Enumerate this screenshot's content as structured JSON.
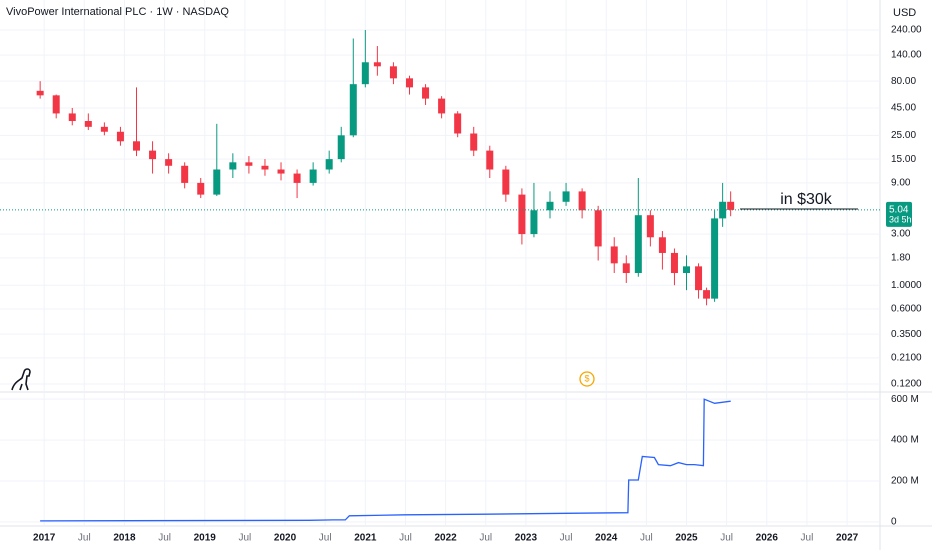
{
  "chart_data": [
    {
      "type": "candlestick",
      "title": "VivoPower International PLC · 1W · NASDAQ",
      "currency": "USD",
      "annotation": "in $30k",
      "last_price": 5.04,
      "countdown": "3d 5h",
      "log_scale": true,
      "grid": true,
      "up_color": "#089981",
      "down_color": "#f23645",
      "xlim": [
        2016.45,
        2027.41
      ],
      "xticks": [
        2017,
        {
          "value": 2017.5,
          "label": "Jul"
        },
        2018,
        {
          "value": 2018.5,
          "label": "Jul"
        },
        2019,
        {
          "value": 2019.5,
          "label": "Jul"
        },
        2020,
        {
          "value": 2020.5,
          "label": "Jul"
        },
        2021,
        {
          "value": 2021.5,
          "label": "Jul"
        },
        2022,
        {
          "value": 2022.5,
          "label": "Jul"
        },
        2023,
        {
          "value": 2023.5,
          "label": "Jul"
        },
        2024,
        {
          "value": 2024.5,
          "label": "Jul"
        },
        2025,
        {
          "value": 2025.5,
          "label": "Jul"
        },
        2026,
        {
          "value": 2026.5,
          "label": "Jul"
        },
        2027
      ],
      "ylim": [
        0.101,
        457
      ],
      "yticks": [
        {
          "value": 240,
          "label": "240.00"
        },
        {
          "value": 140,
          "label": "140.00"
        },
        {
          "value": 80,
          "label": "80.00"
        },
        {
          "value": 45,
          "label": "45.00"
        },
        {
          "value": 25,
          "label": "25.00"
        },
        {
          "value": 15,
          "label": "15.00"
        },
        {
          "value": 9,
          "label": "9.00"
        },
        {
          "value": 3,
          "label": "3.00"
        },
        {
          "value": 1.8,
          "label": "1.80"
        },
        {
          "value": 1,
          "label": "1.0000"
        },
        {
          "value": 0.6,
          "label": "0.6000"
        },
        {
          "value": 0.35,
          "label": "0.3500"
        },
        {
          "value": 0.21,
          "label": "0.2100"
        },
        {
          "value": 0.12,
          "label": "0.1200"
        }
      ],
      "x": [
        2016.95,
        2017.15,
        2017.35,
        2017.55,
        2017.75,
        2017.95,
        2018.15,
        2018.35,
        2018.55,
        2018.75,
        2018.95,
        2019.15,
        2019.35,
        2019.55,
        2019.75,
        2019.95,
        2020.15,
        2020.35,
        2020.55,
        2020.7,
        2020.85,
        2021.0,
        2021.15,
        2021.35,
        2021.55,
        2021.75,
        2021.95,
        2022.15,
        2022.35,
        2022.55,
        2022.75,
        2022.95,
        2023.1,
        2023.3,
        2023.5,
        2023.7,
        2023.9,
        2024.1,
        2024.25,
        2024.4,
        2024.55,
        2024.7,
        2024.85,
        2025.0,
        2025.15,
        2025.25,
        2025.35,
        2025.45,
        2025.55
      ],
      "open": [
        65,
        59,
        40,
        34,
        30,
        27,
        22,
        18,
        15,
        13,
        9,
        7,
        12,
        14,
        13,
        12,
        11,
        9,
        12,
        15,
        25,
        75,
        120,
        110,
        85,
        70,
        55,
        40,
        26,
        18,
        12,
        7,
        3,
        5,
        6,
        7.5,
        5,
        2.3,
        1.6,
        1.3,
        4.5,
        2.8,
        2,
        1.3,
        1.5,
        0.9,
        0.75,
        4.2,
        6
      ],
      "high": [
        80,
        60,
        45,
        40,
        33,
        30,
        70,
        22,
        17,
        14,
        10,
        32,
        17,
        16,
        15,
        14,
        12,
        14,
        18,
        30,
        200,
        240,
        170,
        120,
        90,
        75,
        58,
        42,
        30,
        20,
        13,
        8,
        9,
        7.5,
        9,
        8,
        5.5,
        2.8,
        1.9,
        10,
        5,
        3.2,
        2.2,
        1.9,
        1.6,
        0.95,
        5,
        9,
        7.5
      ],
      "low": [
        55,
        36,
        31,
        28,
        25,
        20,
        16,
        11,
        11,
        8,
        6.5,
        6.8,
        10,
        11,
        10.5,
        9.5,
        6.5,
        8.5,
        11,
        14,
        24,
        70,
        90,
        75,
        60,
        48,
        36,
        24,
        16,
        10,
        6,
        2.4,
        2.8,
        4.2,
        5.5,
        4.2,
        1.7,
        1.3,
        1.05,
        1.2,
        2.3,
        1.4,
        1,
        0.9,
        0.75,
        0.65,
        0.7,
        3.5,
        4.4
      ],
      "close": [
        59,
        40,
        34,
        30,
        27,
        22,
        18,
        15,
        13,
        9,
        7,
        12,
        14,
        13,
        12,
        11,
        9,
        12,
        15,
        25,
        75,
        120,
        110,
        85,
        70,
        55,
        40,
        26,
        18,
        12,
        7,
        3,
        5,
        6,
        7.5,
        5,
        2.3,
        1.6,
        1.3,
        4.5,
        2.8,
        2,
        1.3,
        1.5,
        0.9,
        0.75,
        4.2,
        6,
        5.04
      ]
    },
    {
      "type": "line",
      "color": "#2962ff",
      "grid": true,
      "ylim": [
        -15,
        635
      ],
      "yticks": [
        {
          "value": 600,
          "label": "600 M"
        },
        {
          "value": 400,
          "label": "400 M"
        },
        {
          "value": 200,
          "label": "200 M"
        },
        0
      ],
      "x": [
        2016.95,
        2020.3,
        2020.6,
        2020.75,
        2020.8,
        2021.5,
        2022.5,
        2023.5,
        2024.27,
        2024.28,
        2024.4,
        2024.45,
        2024.6,
        2024.65,
        2024.8,
        2024.9,
        2025.0,
        2025.1,
        2025.21,
        2025.22,
        2025.35,
        2025.55
      ],
      "values": [
        5,
        8,
        10,
        10,
        30,
        35,
        38,
        42,
        45,
        205,
        205,
        320,
        315,
        280,
        275,
        290,
        280,
        280,
        275,
        600,
        580,
        590
      ]
    }
  ]
}
